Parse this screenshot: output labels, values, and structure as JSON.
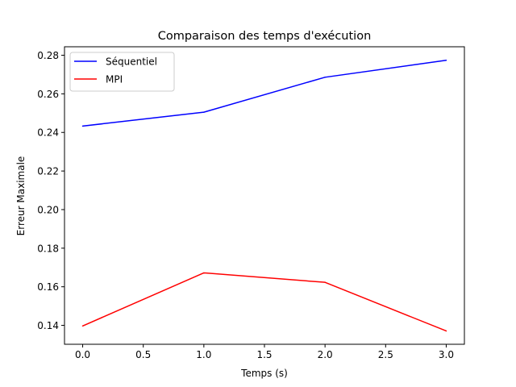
{
  "chart_data": {
    "type": "line",
    "title": "Comparaison des temps d'exécution",
    "xlabel": "Temps (s)",
    "ylabel": "Erreur Maximale",
    "xlim": [
      -0.15,
      3.15
    ],
    "ylim": [
      0.1302,
      0.2844
    ],
    "xticks": [
      0.0,
      0.5,
      1.0,
      1.5,
      2.0,
      2.5,
      3.0
    ],
    "xtick_labels": [
      "0.0",
      "0.5",
      "1.0",
      "1.5",
      "2.0",
      "2.5",
      "3.0"
    ],
    "yticks": [
      0.14,
      0.16,
      0.18,
      0.2,
      0.22,
      0.24,
      0.26,
      0.28
    ],
    "ytick_labels": [
      "0.14",
      "0.16",
      "0.18",
      "0.20",
      "0.22",
      "0.24",
      "0.26",
      "0.28"
    ],
    "grid": false,
    "legend_position": "top-left",
    "x": [
      0,
      1,
      2,
      3
    ],
    "series": [
      {
        "name": "Séquentiel",
        "color": "#0000ff",
        "values": [
          0.2433,
          0.2505,
          0.2686,
          0.2774
        ]
      },
      {
        "name": "MPI",
        "color": "#ff0000",
        "values": [
          0.1397,
          0.1672,
          0.1623,
          0.1371
        ]
      }
    ]
  }
}
